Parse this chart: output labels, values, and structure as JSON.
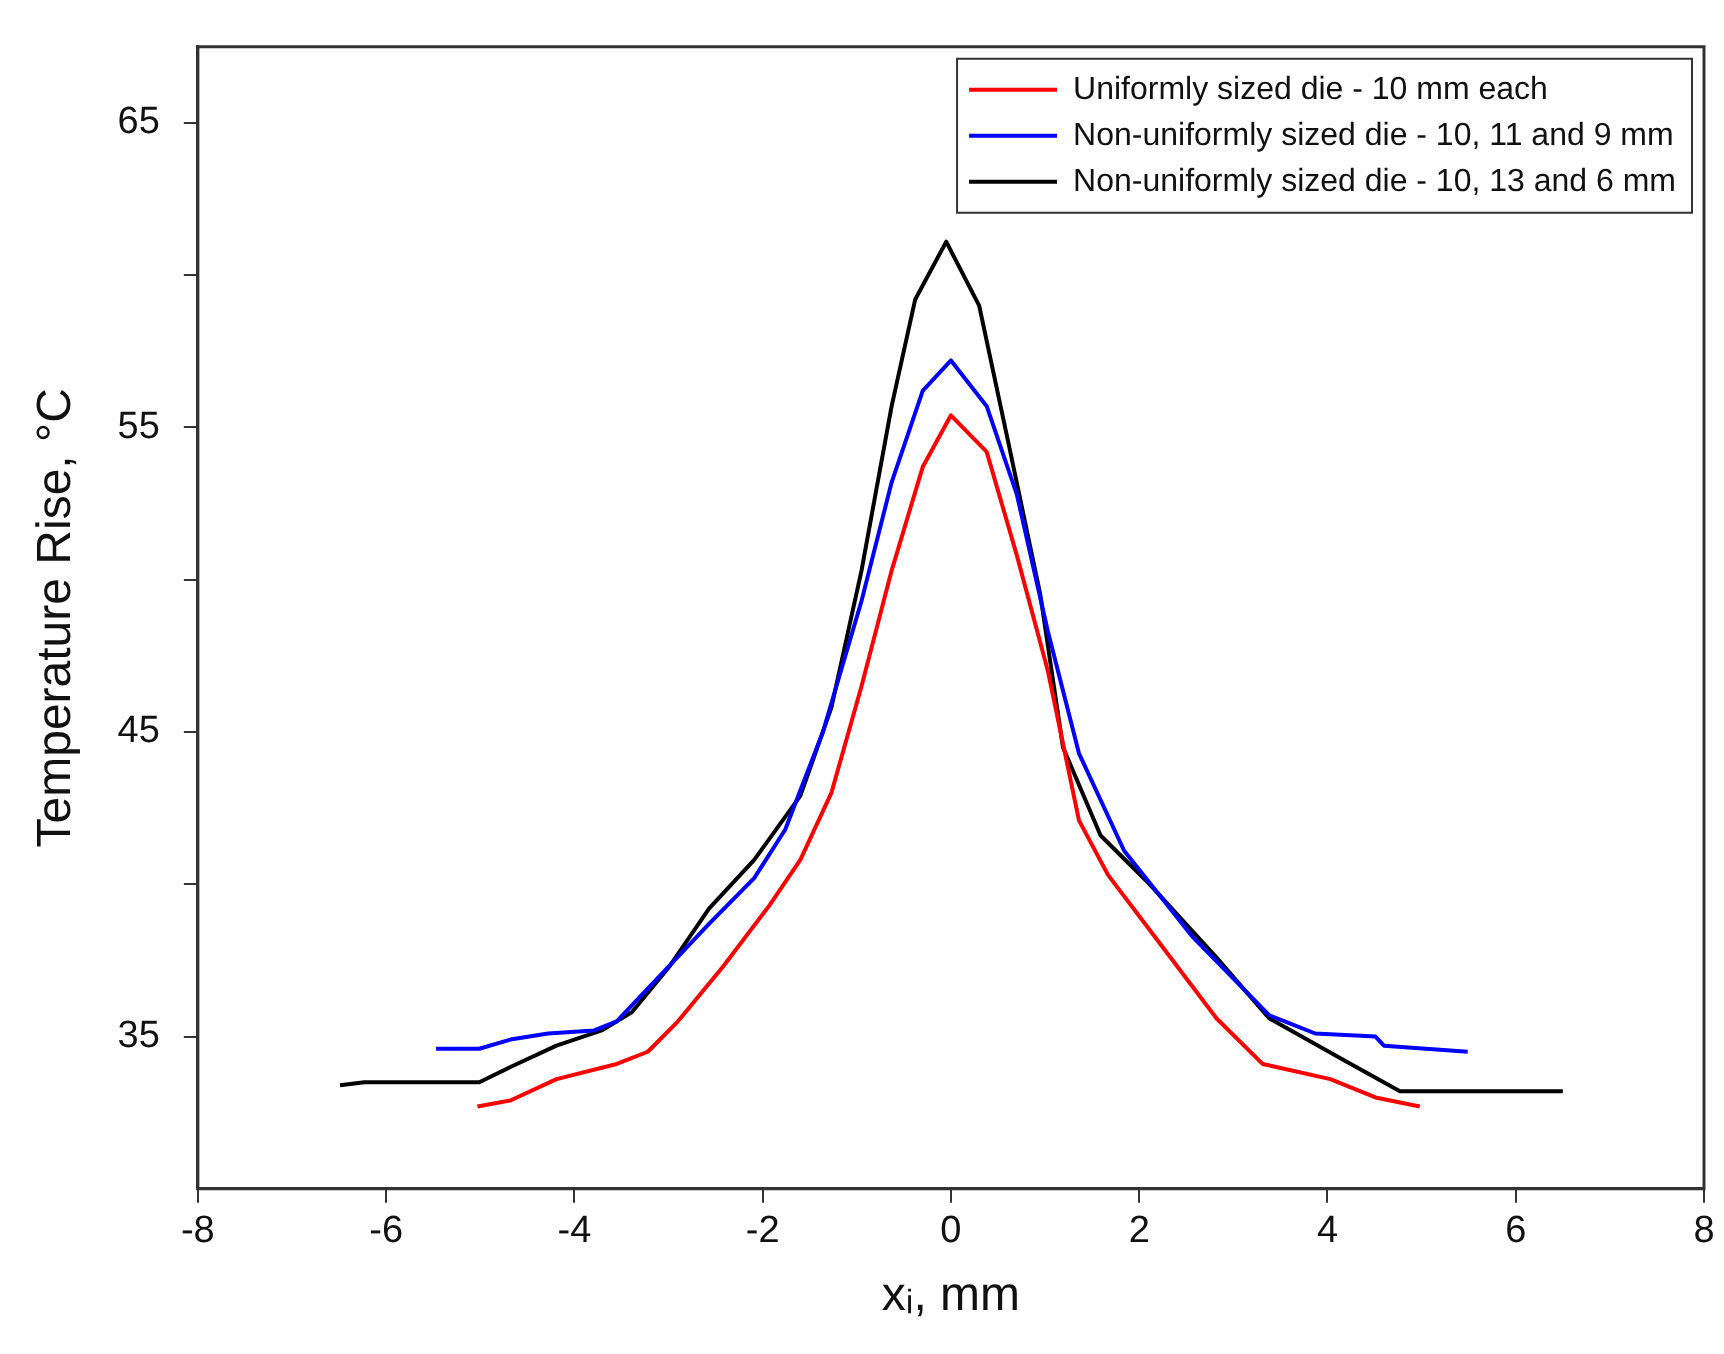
{
  "chart_data": {
    "type": "line",
    "xlabel": "xᵢ, mm",
    "ylabel": "Temperature Rise, °C",
    "xlim": [
      -8,
      8
    ],
    "xticks": [
      -8,
      -6,
      -4,
      -2,
      0,
      2,
      4,
      6,
      8
    ],
    "ylim": [
      30,
      67.5
    ],
    "yticks": [
      {
        "value": 35,
        "label": "35"
      },
      {
        "value": 40,
        "label": null
      },
      {
        "value": 45,
        "label": "45"
      },
      {
        "value": 50,
        "label": null
      },
      {
        "value": 55,
        "label": "55"
      },
      {
        "value": 60,
        "label": null
      },
      {
        "value": 65,
        "label": "65"
      }
    ],
    "grid": false,
    "legend": "top right",
    "marker": "none",
    "line_style": "solid",
    "series": [
      {
        "name": "Uniformly sized die - 10 mm each",
        "color": "#ff0000",
        "x": [
          -5.03,
          -4.68,
          -4.19,
          -3.55,
          -3.22,
          -2.9,
          -2.42,
          -1.93,
          -1.6,
          -1.27,
          -0.95,
          -0.63,
          -0.3,
          0,
          0.38,
          0.7,
          1.03,
          1.36,
          1.67,
          2.16,
          2.82,
          3.31,
          4.03,
          4.51,
          4.98
        ],
        "values": [
          32.7,
          32.9,
          33.6,
          34.1,
          34.5,
          35.5,
          37.3,
          39.3,
          40.8,
          43,
          46.5,
          50.3,
          53.7,
          55.4,
          54.2,
          50.8,
          47,
          42.1,
          40.3,
          38.3,
          35.6,
          34.1,
          33.6,
          33,
          32.7
        ]
      },
      {
        "name": "Non-uniformly sized die - 10, 11 and 9 mm",
        "color": "#0000ff",
        "x": [
          -5.47,
          -5.01,
          -4.68,
          -4.28,
          -3.79,
          -3.55,
          -3.06,
          -2.57,
          -2.09,
          -1.76,
          -1.36,
          -0.95,
          -0.63,
          -0.3,
          0,
          0.38,
          0.7,
          1.03,
          1.36,
          1.84,
          2.56,
          3.38,
          3.87,
          4.51,
          4.6,
          5.49
        ],
        "values": [
          34.6,
          34.6,
          34.9,
          35.1,
          35.2,
          35.5,
          37.1,
          38.7,
          40.2,
          41.8,
          45,
          49.3,
          53.2,
          56.2,
          57.2,
          55.7,
          52.8,
          48.3,
          44.3,
          41.1,
          38.3,
          35.7,
          35.1,
          35,
          34.7,
          34.5
        ]
      },
      {
        "name": "Non-uniformly sized die - 10, 13 and 6 mm",
        "color": "#000000",
        "x": [
          -6.49,
          -6.23,
          -5.01,
          -4.68,
          -4.19,
          -3.71,
          -3.39,
          -2.99,
          -2.57,
          -2.09,
          -1.6,
          -1.27,
          -0.95,
          -0.63,
          -0.38,
          -0.05,
          0.3,
          0.61,
          0.95,
          1.19,
          1.59,
          2.08,
          2.82,
          3.38,
          4.19,
          4.77,
          6.5
        ],
        "values": [
          33.4,
          33.5,
          33.5,
          34,
          34.7,
          35.2,
          35.8,
          37.3,
          39.2,
          40.8,
          42.9,
          45.8,
          50.3,
          55.7,
          59.2,
          61.1,
          59,
          54.5,
          49.5,
          44.5,
          41.6,
          40.1,
          37.6,
          35.6,
          34.2,
          33.2,
          33.2
        ]
      }
    ]
  }
}
